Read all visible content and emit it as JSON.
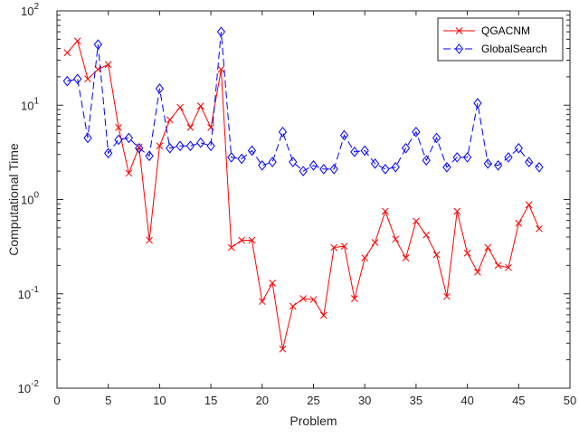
{
  "chart_data": {
    "type": "line",
    "title": "",
    "xlabel": "Problem",
    "ylabel": "Computational Time",
    "xlim": [
      0,
      50
    ],
    "ylim": [
      0.01,
      100
    ],
    "yscale": "log",
    "xticks": [
      "0",
      "5",
      "10",
      "15",
      "20",
      "25",
      "30",
      "35",
      "40",
      "45",
      "50"
    ],
    "yticks": [
      {
        "base": "10",
        "exp": "-2"
      },
      {
        "base": "10",
        "exp": "-1"
      },
      {
        "base": "10",
        "exp": "0"
      },
      {
        "base": "10",
        "exp": "1"
      },
      {
        "base": "10",
        "exp": "2"
      }
    ],
    "grid": false,
    "legend_position": "top-right",
    "x": [
      1,
      2,
      3,
      4,
      5,
      6,
      7,
      8,
      9,
      10,
      11,
      12,
      13,
      14,
      15,
      16,
      17,
      18,
      19,
      20,
      21,
      22,
      23,
      24,
      25,
      26,
      27,
      28,
      29,
      30,
      31,
      32,
      33,
      34,
      35,
      36,
      37,
      38,
      39,
      40,
      41,
      42,
      43,
      44,
      45,
      46,
      47
    ],
    "series": [
      {
        "name": "QGACNM",
        "color": "#ff0000",
        "line_style": "solid",
        "marker": "x",
        "values": [
          36,
          48,
          19,
          24,
          27,
          5.8,
          1.9,
          3.6,
          0.37,
          3.7,
          7.0,
          9.5,
          5.8,
          9.8,
          5.8,
          24,
          0.31,
          0.37,
          0.37,
          0.083,
          0.13,
          0.026,
          0.074,
          0.089,
          0.087,
          0.059,
          0.31,
          0.32,
          0.089,
          0.24,
          0.35,
          0.75,
          0.38,
          0.24,
          0.59,
          0.42,
          0.26,
          0.094,
          0.75,
          0.27,
          0.17,
          0.31,
          0.2,
          0.19,
          0.56,
          0.88,
          0.49
        ]
      },
      {
        "name": "GlobalSearch",
        "color": "#0000ff",
        "line_style": "dashed",
        "marker": "diamond",
        "values": [
          18,
          19,
          4.5,
          44,
          3.1,
          4.3,
          4.5,
          3.5,
          2.9,
          15,
          3.5,
          3.7,
          3.7,
          4.0,
          3.7,
          60,
          2.8,
          2.7,
          3.3,
          2.3,
          2.5,
          5.2,
          2.5,
          2.0,
          2.3,
          2.1,
          2.1,
          4.8,
          3.2,
          3.3,
          2.4,
          2.1,
          2.2,
          3.5,
          5.2,
          2.6,
          4.5,
          2.2,
          2.8,
          2.8,
          10.5,
          2.4,
          2.3,
          2.8,
          3.5,
          2.5,
          2.2
        ]
      }
    ]
  }
}
